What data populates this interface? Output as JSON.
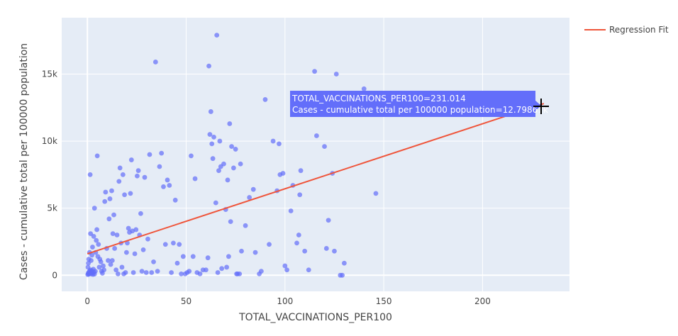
{
  "chart_data": {
    "type": "scatter",
    "xlabel": "TOTAL_VACCINATIONS_PER100",
    "ylabel": "Cases - cumulative total per 100000 population",
    "xlim": [
      -13,
      244
    ],
    "ylim": [
      -1200,
      19200
    ],
    "xticks": [
      0,
      50,
      100,
      150,
      200
    ],
    "xtick_labels": [
      "0",
      "50",
      "100",
      "150",
      "200"
    ],
    "yticks": [
      0,
      5000,
      10000,
      15000
    ],
    "ytick_labels": [
      "0",
      "5k",
      "10k",
      "15k"
    ],
    "grid": true,
    "legend_position": "top-right",
    "colors": {
      "points": "#636efa",
      "regression": "#ef553b",
      "plot_bg": "#e5ecf6",
      "hover_bg": "#636efa"
    },
    "series": [
      {
        "kind": "scatter",
        "points": [
          [
            0.2,
            50
          ],
          [
            0.4,
            120
          ],
          [
            0.6,
            200
          ],
          [
            0.8,
            80
          ],
          [
            1.0,
            300
          ],
          [
            1.2,
            150
          ],
          [
            1.5,
            400
          ],
          [
            1.8,
            250
          ],
          [
            2.0,
            100
          ],
          [
            2.2,
            350
          ],
          [
            2.5,
            180
          ],
          [
            2.8,
            60
          ],
          [
            3.0,
            450
          ],
          [
            3.3,
            220
          ],
          [
            3.6,
            90
          ],
          [
            4.0,
            300
          ],
          [
            0.3,
            600
          ],
          [
            0.5,
            900
          ],
          [
            0.7,
            1200
          ],
          [
            1.1,
            1700
          ],
          [
            1.4,
            7500
          ],
          [
            1.6,
            3100
          ],
          [
            1.9,
            1100
          ],
          [
            2.3,
            1500
          ],
          [
            2.6,
            2100
          ],
          [
            3.2,
            2900
          ],
          [
            3.6,
            5000
          ],
          [
            4.2,
            1700
          ],
          [
            4.5,
            2600
          ],
          [
            4.8,
            3400
          ],
          [
            5.0,
            8900
          ],
          [
            5.3,
            1400
          ],
          [
            5.6,
            2300
          ],
          [
            6.0,
            600
          ],
          [
            6.3,
            1200
          ],
          [
            6.8,
            1000
          ],
          [
            7.2,
            300
          ],
          [
            7.6,
            150
          ],
          [
            8.0,
            700
          ],
          [
            8.4,
            400
          ],
          [
            8.8,
            5500
          ],
          [
            9.2,
            6200
          ],
          [
            9.8,
            2000
          ],
          [
            10.5,
            1100
          ],
          [
            11.0,
            4200
          ],
          [
            11.4,
            5700
          ],
          [
            11.8,
            800
          ],
          [
            12.3,
            6300
          ],
          [
            12.6,
            1100
          ],
          [
            12.9,
            3100
          ],
          [
            13.4,
            4500
          ],
          [
            13.8,
            2000
          ],
          [
            14.5,
            400
          ],
          [
            15.0,
            3000
          ],
          [
            15.5,
            100
          ],
          [
            16.0,
            7000
          ],
          [
            16.5,
            8000
          ],
          [
            17.0,
            2400
          ],
          [
            17.5,
            600
          ],
          [
            18.0,
            7500
          ],
          [
            18.4,
            100
          ],
          [
            18.8,
            6000
          ],
          [
            19.3,
            200
          ],
          [
            19.8,
            1700
          ],
          [
            20.2,
            2400
          ],
          [
            20.8,
            3500
          ],
          [
            21.3,
            3200
          ],
          [
            21.8,
            6100
          ],
          [
            22.3,
            8600
          ],
          [
            22.8,
            3300
          ],
          [
            23.3,
            200
          ],
          [
            24.0,
            1600
          ],
          [
            24.6,
            3400
          ],
          [
            25.2,
            7400
          ],
          [
            25.8,
            7800
          ],
          [
            26.4,
            3000
          ],
          [
            27.0,
            4600
          ],
          [
            27.6,
            300
          ],
          [
            28.3,
            1900
          ],
          [
            29.0,
            7300
          ],
          [
            29.8,
            200
          ],
          [
            30.6,
            2700
          ],
          [
            31.5,
            9000
          ],
          [
            32.5,
            200
          ],
          [
            33.5,
            1000
          ],
          [
            34.5,
            15900
          ],
          [
            35.5,
            300
          ],
          [
            36.5,
            8100
          ],
          [
            37.5,
            9100
          ],
          [
            38.5,
            6600
          ],
          [
            39.5,
            2300
          ],
          [
            40.5,
            7100
          ],
          [
            41.5,
            6700
          ],
          [
            42.5,
            200
          ],
          [
            43.5,
            2400
          ],
          [
            44.5,
            5600
          ],
          [
            45.5,
            900
          ],
          [
            46.5,
            2300
          ],
          [
            47.5,
            100
          ],
          [
            48.5,
            1400
          ],
          [
            49.5,
            100
          ],
          [
            50.5,
            200
          ],
          [
            51.5,
            300
          ],
          [
            52.5,
            8900
          ],
          [
            53.5,
            1400
          ],
          [
            54.5,
            7200
          ],
          [
            55.5,
            200
          ],
          [
            57,
            100
          ],
          [
            58.5,
            400
          ],
          [
            60,
            400
          ],
          [
            61,
            1300
          ],
          [
            61.5,
            15600
          ],
          [
            62,
            10500
          ],
          [
            62.5,
            12200
          ],
          [
            63,
            9800
          ],
          [
            63.5,
            8700
          ],
          [
            64,
            10300
          ],
          [
            65,
            5400
          ],
          [
            65.5,
            17900
          ],
          [
            66,
            200
          ],
          [
            66.5,
            7800
          ],
          [
            67,
            10000
          ],
          [
            67.5,
            8100
          ],
          [
            68,
            500
          ],
          [
            69,
            8300
          ],
          [
            70,
            4900
          ],
          [
            70.5,
            600
          ],
          [
            71,
            7100
          ],
          [
            71.5,
            1400
          ],
          [
            72,
            11300
          ],
          [
            72.5,
            4000
          ],
          [
            73,
            9600
          ],
          [
            74,
            8000
          ],
          [
            75,
            9400
          ],
          [
            75.5,
            100
          ],
          [
            76,
            100
          ],
          [
            77,
            100
          ],
          [
            77.5,
            8300
          ],
          [
            78,
            1800
          ],
          [
            80,
            3700
          ],
          [
            82,
            5800
          ],
          [
            84,
            6400
          ],
          [
            85,
            1700
          ],
          [
            87,
            100
          ],
          [
            88,
            300
          ],
          [
            90,
            13100
          ],
          [
            92,
            2300
          ],
          [
            94,
            10000
          ],
          [
            96,
            6300
          ],
          [
            97,
            9800
          ],
          [
            97.5,
            7500
          ],
          [
            99,
            7600
          ],
          [
            100,
            700
          ],
          [
            101,
            400
          ],
          [
            103,
            4800
          ],
          [
            104,
            6700
          ],
          [
            106,
            2400
          ],
          [
            107,
            3000
          ],
          [
            107.5,
            6000
          ],
          [
            108,
            7800
          ],
          [
            110,
            1800
          ],
          [
            112,
            400
          ],
          [
            115,
            15200
          ],
          [
            116,
            10400
          ],
          [
            120,
            9600
          ],
          [
            121,
            2000
          ],
          [
            122,
            4100
          ],
          [
            124,
            7600
          ],
          [
            125,
            1800
          ],
          [
            126,
            15000
          ],
          [
            128,
            0
          ],
          [
            129,
            0
          ],
          [
            130,
            900
          ],
          [
            140,
            13900
          ],
          [
            146,
            6100
          ]
        ]
      },
      {
        "name": "Regression Fit",
        "kind": "line",
        "x": [
          0,
          231.014
        ],
        "y": [
          1600,
          12798.67
        ]
      }
    ],
    "hover": {
      "x": 231.014,
      "y": 12798.67,
      "line1": "TOTAL_VACCINATIONS_PER100=231.014",
      "line2": "Cases - cumulative total per 100000 population=12.79867k"
    }
  }
}
